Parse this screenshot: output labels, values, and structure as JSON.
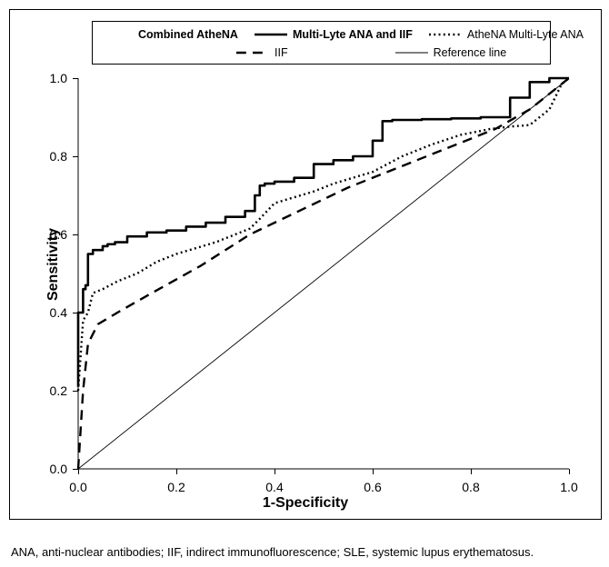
{
  "chart": {
    "type": "line",
    "xlabel": "1-Specificity",
    "ylabel": "Sensitivity",
    "label_fontsize": 16,
    "tick_fontsize": 14,
    "xlim": [
      0.0,
      1.0
    ],
    "ylim": [
      0.0,
      1.0
    ],
    "xticks": [
      0.0,
      0.2,
      0.4,
      0.6,
      0.8,
      1.0
    ],
    "yticks": [
      0.0,
      0.2,
      0.4,
      0.6,
      0.8,
      1.0
    ],
    "background_color": "#ffffff",
    "border_color": "#000000",
    "line_color": "#000000",
    "grid": false,
    "series": [
      {
        "name": "Combined AtheNA",
        "label": "Combined AtheNA",
        "legend_bold": true,
        "style": "solid",
        "width": 2.6,
        "x": [
          0.0,
          0.01,
          0.015,
          0.02,
          0.03,
          0.05,
          0.06,
          0.075,
          0.1,
          0.14,
          0.18,
          0.22,
          0.26,
          0.3,
          0.34,
          0.36,
          0.37,
          0.38,
          0.4,
          0.44,
          0.48,
          0.52,
          0.56,
          0.6,
          0.62,
          0.64,
          0.7,
          0.76,
          0.82,
          0.88,
          0.92,
          0.96,
          0.99,
          1.0
        ],
        "y": [
          0.21,
          0.4,
          0.46,
          0.47,
          0.55,
          0.56,
          0.57,
          0.575,
          0.58,
          0.595,
          0.605,
          0.61,
          0.62,
          0.63,
          0.645,
          0.66,
          0.7,
          0.725,
          0.73,
          0.735,
          0.745,
          0.78,
          0.79,
          0.8,
          0.84,
          0.89,
          0.893,
          0.895,
          0.897,
          0.9,
          0.95,
          0.99,
          1.0,
          1.0
        ]
      },
      {
        "name": "Multi-Lyte ANA and IIF",
        "label": "Multi-Lyte ANA and IIF",
        "legend_bold": true,
        "style": "solid",
        "width": 2.6,
        "x": [
          0.0,
          0.01,
          0.015,
          0.02,
          0.03,
          0.05,
          0.06,
          0.075,
          0.1,
          0.14,
          0.18,
          0.22,
          0.26,
          0.3,
          0.34,
          0.36,
          0.37,
          0.38,
          0.4,
          0.44,
          0.48,
          0.52,
          0.56,
          0.6,
          0.62,
          0.64,
          0.7,
          0.76,
          0.82,
          0.88,
          0.92,
          0.96,
          0.99,
          1.0
        ],
        "y": [
          0.21,
          0.4,
          0.46,
          0.47,
          0.55,
          0.56,
          0.57,
          0.575,
          0.58,
          0.595,
          0.605,
          0.61,
          0.62,
          0.63,
          0.645,
          0.66,
          0.7,
          0.725,
          0.73,
          0.735,
          0.745,
          0.78,
          0.79,
          0.8,
          0.84,
          0.89,
          0.893,
          0.895,
          0.897,
          0.9,
          0.95,
          0.99,
          1.0,
          1.0
        ]
      },
      {
        "name": "AtheNA Multi-Lyte ANA",
        "label": "AtheNA Multi-Lyte ANA",
        "legend_bold": false,
        "style": "dotted",
        "width": 2.4,
        "x": [
          0.0,
          0.01,
          0.02,
          0.03,
          0.05,
          0.08,
          0.12,
          0.16,
          0.2,
          0.24,
          0.28,
          0.32,
          0.35,
          0.37,
          0.4,
          0.44,
          0.48,
          0.52,
          0.56,
          0.6,
          0.66,
          0.72,
          0.78,
          0.84,
          0.88,
          0.92,
          0.96,
          0.985,
          1.0
        ],
        "y": [
          0.2,
          0.38,
          0.4,
          0.45,
          0.46,
          0.48,
          0.5,
          0.53,
          0.55,
          0.565,
          0.58,
          0.6,
          0.615,
          0.64,
          0.68,
          0.695,
          0.71,
          0.73,
          0.745,
          0.76,
          0.8,
          0.83,
          0.855,
          0.87,
          0.876,
          0.88,
          0.92,
          0.985,
          1.0
        ]
      },
      {
        "name": "IIF",
        "label": "IIF",
        "legend_bold": false,
        "style": "dashed",
        "width": 2.4,
        "x": [
          0.0,
          0.01,
          0.02,
          0.04,
          0.08,
          0.15,
          0.25,
          0.35,
          0.45,
          0.55,
          0.65,
          0.75,
          0.85,
          0.92,
          0.97,
          1.0
        ],
        "y": [
          0.0,
          0.2,
          0.32,
          0.37,
          0.4,
          0.45,
          0.52,
          0.6,
          0.66,
          0.72,
          0.77,
          0.82,
          0.87,
          0.92,
          0.97,
          1.0
        ]
      },
      {
        "name": "Reference line",
        "label": "Reference line",
        "legend_bold": false,
        "style": "solid",
        "width": 0.9,
        "x": [
          0.0,
          1.0
        ],
        "y": [
          0.0,
          1.0
        ]
      }
    ],
    "legend": {
      "position": "top",
      "border_color": "#000000",
      "fontsize": 12.5,
      "items": [
        {
          "seriesIndex": 0,
          "row": 0
        },
        {
          "seriesIndex": 1,
          "row": 0
        },
        {
          "seriesIndex": 2,
          "row": 0
        },
        {
          "seriesIndex": 3,
          "row": 1
        },
        {
          "seriesIndex": 4,
          "row": 1
        }
      ]
    }
  },
  "caption": "ANA, anti-nuclear antibodies; IIF, indirect immunofluorescence; SLE, systemic lupus erythematosus."
}
